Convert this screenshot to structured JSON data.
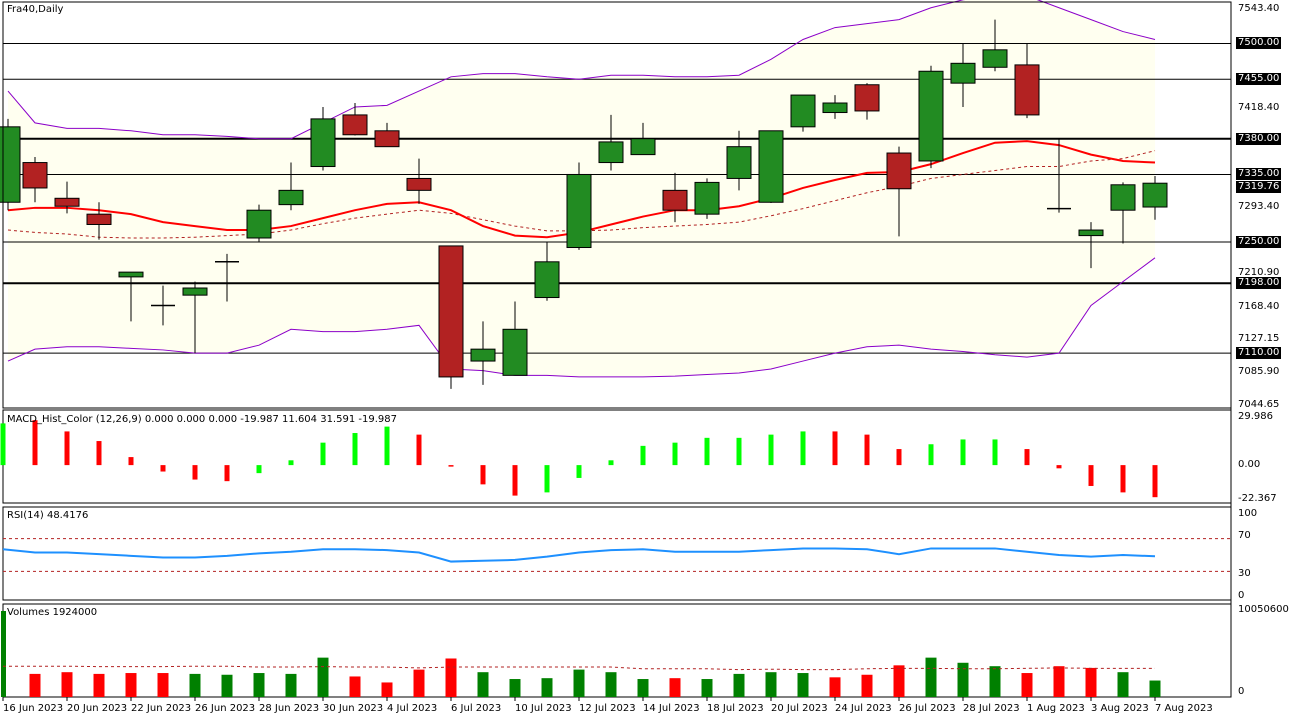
{
  "window": {
    "title": "Fra40,Daily"
  },
  "colors": {
    "bull": "#228b22",
    "bear": "#b22222",
    "band": "#8b00c9",
    "band_fill": "#fffff0",
    "ma": "#ff0000",
    "ma_dash": "#b22222",
    "rsi": "#1e90ff",
    "hist_up": "#00ff00",
    "hist_down": "#ff0000",
    "vol_up": "#008000",
    "vol_down": "#ff0000"
  },
  "price_axis": {
    "labels": [
      "7543.40",
      "7418.40",
      "7293.40",
      "7210.90",
      "7168.40",
      "7127.15",
      "7085.90",
      "7044.65"
    ],
    "levels": [
      "7500.00",
      "7455.00",
      "7380.00",
      "7335.00",
      "7319.76",
      "7250.00",
      "7198.00",
      "7110.00"
    ]
  },
  "macd_panel": {
    "title": "MACD_Hist_Color (12,26,9)  0.000 0.000 0.000 -19.987 11.604 31.591 -19.987",
    "axis": [
      "29.986",
      "0.00",
      "-22.367"
    ]
  },
  "rsi_panel": {
    "title": "RSI(14) 48.4176",
    "axis": [
      "100",
      "70",
      "30",
      "0"
    ]
  },
  "volume_panel": {
    "title": "Volumes 1924000",
    "axis": [
      "10050600",
      "0"
    ]
  },
  "date_axis": [
    {
      "label": "16 Jun 2023",
      "x": 3
    },
    {
      "label": "20 Jun 2023",
      "x": 67
    },
    {
      "label": "22 Jun 2023",
      "x": 131
    },
    {
      "label": "26 Jun 2023",
      "x": 195
    },
    {
      "label": "28 Jun 2023",
      "x": 259
    },
    {
      "label": "30 Jun 2023",
      "x": 323
    },
    {
      "label": "4 Jul 2023",
      "x": 387
    },
    {
      "label": "6 Jul 2023",
      "x": 451
    },
    {
      "label": "10 Jul 2023",
      "x": 515
    },
    {
      "label": "12 Jul 2023",
      "x": 579
    },
    {
      "label": "14 Jul 2023",
      "x": 643
    },
    {
      "label": "18 Jul 2023",
      "x": 707
    },
    {
      "label": "20 Jul 2023",
      "x": 771
    },
    {
      "label": "24 Jul 2023",
      "x": 835
    },
    {
      "label": "26 Jul 2023",
      "x": 899
    },
    {
      "label": "28 Jul 2023",
      "x": 963
    },
    {
      "label": "1 Aug 2023",
      "x": 1027
    },
    {
      "label": "3 Aug 2023",
      "x": 1091
    },
    {
      "label": "7 Aug 2023",
      "x": 1155
    }
  ],
  "chart_data": [
    {
      "type": "candlestick",
      "title": "Fra40,Daily",
      "ylim": [
        7044.65,
        7543.4
      ],
      "horizontal_levels": [
        7500,
        7455,
        7380,
        7335,
        7250,
        7198,
        7110
      ],
      "current_price": 7319.76,
      "x": [
        8,
        35,
        67,
        99,
        131,
        163,
        195,
        227,
        259,
        291,
        323,
        355,
        387,
        419,
        451,
        483,
        515,
        547,
        579,
        611,
        643,
        675,
        707,
        739,
        771,
        803,
        835,
        867,
        899,
        931,
        963,
        995,
        1027,
        1059,
        1091,
        1123,
        1155
      ],
      "ohlc": [
        [
          7300,
          7405,
          7290,
          7395
        ],
        [
          7350,
          7357,
          7300,
          7318
        ],
        [
          7305,
          7326,
          7286,
          7295
        ],
        [
          7285,
          7300,
          7253,
          7272
        ],
        [
          7206,
          7210,
          7150,
          7212
        ],
        [
          7170,
          7195,
          7145,
          7170
        ],
        [
          7183,
          7200,
          7110,
          7192
        ],
        [
          7225,
          7235,
          7175,
          7225
        ],
        [
          7255,
          7297,
          7250,
          7290
        ],
        [
          7297,
          7350,
          7290,
          7315
        ],
        [
          7345,
          7420,
          7340,
          7405
        ],
        [
          7410,
          7425,
          7384,
          7385
        ],
        [
          7390,
          7400,
          7373,
          7370
        ],
        [
          7330,
          7355,
          7298,
          7315
        ],
        [
          7245,
          7245,
          7065,
          7080
        ],
        [
          7100,
          7150,
          7070,
          7115
        ],
        [
          7082,
          7175,
          7082,
          7140
        ],
        [
          7180,
          7250,
          7176,
          7225
        ],
        [
          7243,
          7350,
          7240,
          7335
        ],
        [
          7350,
          7410,
          7340,
          7376
        ],
        [
          7360,
          7400,
          7360,
          7380
        ],
        [
          7315,
          7337,
          7275,
          7290
        ],
        [
          7285,
          7330,
          7279,
          7325
        ],
        [
          7330,
          7390,
          7315,
          7370
        ],
        [
          7300,
          7390,
          7299,
          7390
        ],
        [
          7395,
          7435,
          7389,
          7435
        ],
        [
          7413,
          7435,
          7405,
          7425
        ],
        [
          7448,
          7450,
          7404,
          7415
        ],
        [
          7362,
          7370,
          7257,
          7317
        ],
        [
          7352,
          7472,
          7343,
          7465
        ],
        [
          7450,
          7500,
          7420,
          7475
        ],
        [
          7470,
          7530,
          7465,
          7492
        ],
        [
          7473,
          7500,
          7406,
          7410
        ],
        [
          7292,
          7380,
          7287,
          7292
        ],
        [
          7258,
          7275,
          7217,
          7265
        ],
        [
          7290,
          7325,
          7248,
          7322
        ],
        [
          7294,
          7333,
          7278,
          7324
        ]
      ],
      "bollinger_upper": [
        7440,
        7400,
        7393,
        7393,
        7390,
        7385,
        7385,
        7383,
        7380,
        7380,
        7400,
        7420,
        7422,
        7440,
        7458,
        7462,
        7462,
        7458,
        7455,
        7460,
        7460,
        7458,
        7458,
        7460,
        7480,
        7505,
        7520,
        7525,
        7530,
        7545,
        7555,
        7560,
        7560,
        7545,
        7530,
        7515,
        7505
      ],
      "ma_mid": [
        7290,
        7293,
        7293,
        7290,
        7285,
        7275,
        7270,
        7265,
        7265,
        7270,
        7280,
        7290,
        7298,
        7300,
        7290,
        7270,
        7258,
        7256,
        7262,
        7272,
        7282,
        7290,
        7290,
        7295,
        7305,
        7318,
        7328,
        7337,
        7338,
        7348,
        7362,
        7375,
        7377,
        7372,
        7360,
        7352,
        7350
      ],
      "ma_slow": [
        7265,
        7262,
        7260,
        7256,
        7255,
        7255,
        7256,
        7258,
        7260,
        7265,
        7273,
        7280,
        7285,
        7290,
        7286,
        7278,
        7270,
        7264,
        7264,
        7265,
        7268,
        7270,
        7272,
        7275,
        7283,
        7292,
        7302,
        7312,
        7320,
        7330,
        7335,
        7340,
        7345,
        7345,
        7352,
        7355,
        7365
      ],
      "bollinger_lower": [
        7100,
        7115,
        7118,
        7118,
        7116,
        7114,
        7110,
        7110,
        7120,
        7140,
        7137,
        7137,
        7140,
        7145,
        7090,
        7088,
        7082,
        7082,
        7080,
        7080,
        7080,
        7081,
        7083,
        7085,
        7090,
        7100,
        7110,
        7118,
        7120,
        7115,
        7112,
        7108,
        7105,
        7110,
        7170,
        7200,
        7230
      ]
    },
    {
      "type": "bar",
      "title": "MACD_Hist_Color (12,26,9)",
      "ylim": [
        -22.367,
        29.986
      ],
      "x": [
        3,
        35,
        67,
        99,
        131,
        163,
        195,
        227,
        259,
        291,
        323,
        355,
        387,
        419,
        451,
        483,
        515,
        547,
        579,
        611,
        643,
        675,
        707,
        739,
        771,
        803,
        835,
        867,
        899,
        931,
        963,
        995,
        1027,
        1059,
        1091,
        1123,
        1155
      ],
      "values": [
        26,
        28,
        21,
        15,
        5,
        -4,
        -9,
        -10,
        -5,
        3,
        14,
        20,
        24,
        19,
        0,
        -12,
        -19,
        -17,
        -8,
        3,
        12,
        14,
        17,
        17,
        19,
        21,
        21,
        19,
        10,
        13,
        16,
        16,
        10,
        -2,
        -13,
        -17,
        -19.987
      ],
      "colors": [
        "up",
        "down",
        "down",
        "down",
        "down",
        "down",
        "down",
        "down",
        "up",
        "up",
        "up",
        "up",
        "up",
        "down",
        "down",
        "down",
        "down",
        "up",
        "up",
        "up",
        "up",
        "up",
        "up",
        "up",
        "up",
        "up",
        "down",
        "down",
        "down",
        "up",
        "up",
        "up",
        "down",
        "down",
        "down",
        "down",
        "down"
      ]
    },
    {
      "type": "line",
      "title": "RSI(14)",
      "ylim": [
        0,
        100
      ],
      "levels": [
        70,
        30
      ],
      "x": [
        3,
        35,
        67,
        99,
        131,
        163,
        195,
        227,
        259,
        291,
        323,
        355,
        387,
        419,
        451,
        483,
        515,
        547,
        579,
        611,
        643,
        675,
        707,
        739,
        771,
        803,
        835,
        867,
        899,
        931,
        963,
        995,
        1027,
        1059,
        1091,
        1123,
        1155
      ],
      "values": [
        57,
        53,
        53,
        51,
        49,
        47,
        47,
        49,
        52,
        54,
        57,
        57,
        56,
        53,
        42,
        43,
        44,
        48,
        53,
        56,
        57,
        54,
        54,
        54,
        56,
        58,
        58,
        57,
        51,
        58,
        58,
        58,
        54,
        50,
        48,
        50,
        48.4176
      ]
    },
    {
      "type": "bar",
      "title": "Volumes",
      "ylim": [
        0,
        10050600
      ],
      "x": [
        3,
        35,
        67,
        99,
        131,
        163,
        195,
        227,
        259,
        291,
        323,
        355,
        387,
        419,
        451,
        483,
        515,
        547,
        579,
        611,
        643,
        675,
        707,
        739,
        771,
        803,
        835,
        867,
        899,
        931,
        963,
        995,
        1027,
        1059,
        1091,
        1123,
        1155
      ],
      "values": [
        10050600,
        2700000,
        2900000,
        2700000,
        2800000,
        2800000,
        2700000,
        2600000,
        2800000,
        2700000,
        4600000,
        2400000,
        1700000,
        3200000,
        4500000,
        2900000,
        2100000,
        2200000,
        3200000,
        2900000,
        2100000,
        2200000,
        2100000,
        2700000,
        2900000,
        2800000,
        2300000,
        2600000,
        3700000,
        4600000,
        4000000,
        3600000,
        2800000,
        3600000,
        3400000,
        2900000,
        1924000
      ],
      "colors": [
        "up",
        "down",
        "down",
        "down",
        "down",
        "down",
        "up",
        "up",
        "up",
        "up",
        "up",
        "down",
        "down",
        "down",
        "down",
        "up",
        "up",
        "up",
        "up",
        "up",
        "up",
        "down",
        "up",
        "up",
        "up",
        "up",
        "down",
        "down",
        "down",
        "up",
        "up",
        "up",
        "down",
        "down",
        "down",
        "up",
        "up"
      ],
      "ma": [
        3600000,
        3600000,
        3600000,
        3550000,
        3550000,
        3550000,
        3600000,
        3600000,
        3500000,
        3500000,
        3550000,
        3500000,
        3500000,
        3400000,
        3500000,
        3500000,
        3500000,
        3500000,
        3500000,
        3500000,
        3300000,
        3300000,
        3300000,
        3200000,
        3250000,
        3200000,
        3200000,
        3300000,
        3350000,
        3350000,
        3300000,
        3300000,
        3350000,
        3400000,
        3350000,
        3350000,
        3350000
      ]
    }
  ]
}
